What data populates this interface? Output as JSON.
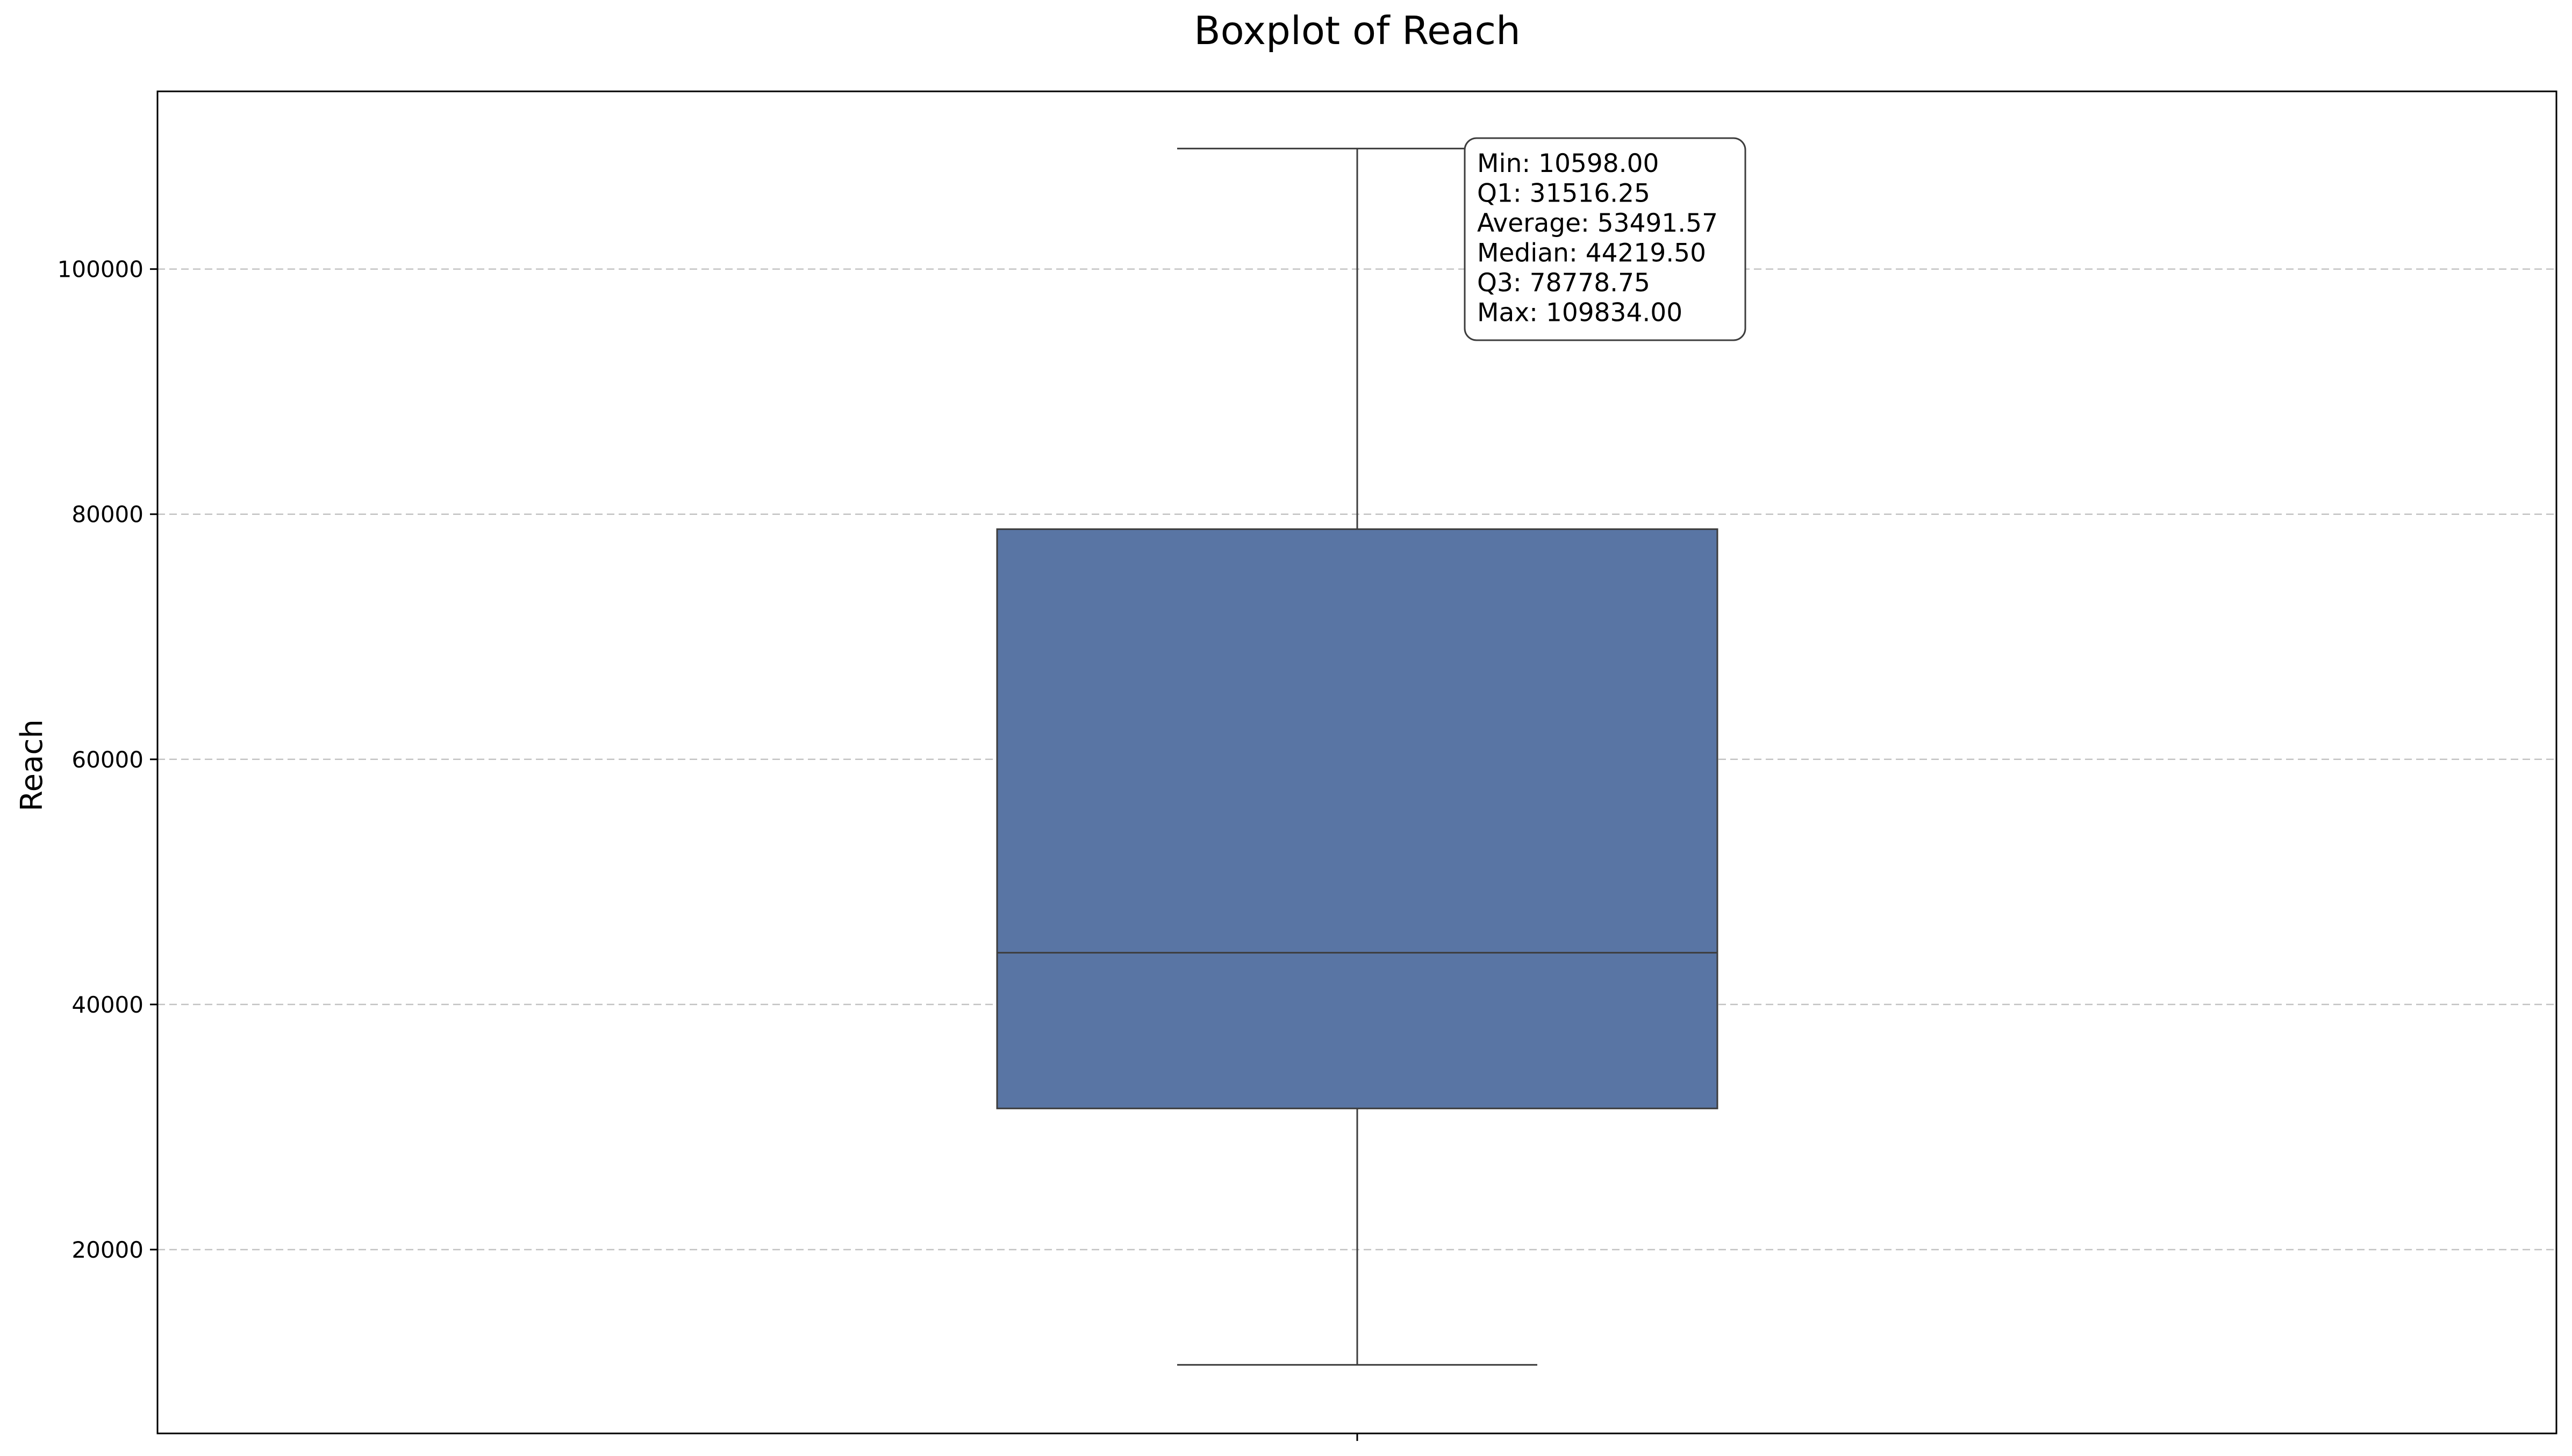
{
  "chart_data": {
    "type": "box",
    "title": "Boxplot of Reach",
    "xlabel": "",
    "ylabel": "Reach",
    "ylim": [
      5000,
      114500
    ],
    "yticks": [
      20000,
      40000,
      60000,
      80000,
      100000
    ],
    "ytick_labels": [
      "20000",
      "40000",
      "60000",
      "80000",
      "100000"
    ],
    "grid": "y-dashed",
    "box": {
      "min": 10598.0,
      "q1": 31516.25,
      "median": 44219.5,
      "q3": 78778.75,
      "max": 109834.0,
      "average": 53491.57,
      "color": "#5975a4"
    },
    "stats_box": {
      "position": "top-right of whisker",
      "lines": [
        "Min: 10598.00",
        "Q1: 31516.25",
        "Average: 53491.57",
        "Median: 44219.50",
        "Q3: 78778.75",
        "Max: 109834.00"
      ]
    },
    "colors": {
      "box_fill": "#5975a4",
      "box_edge": "#3d3d3d",
      "grid": "#b0b0b0"
    }
  }
}
